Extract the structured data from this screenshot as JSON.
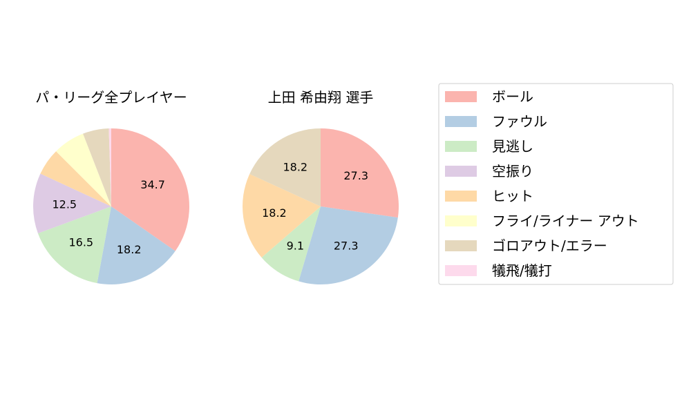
{
  "chart_data": {
    "type": "pie",
    "legend_position": "right",
    "legend": [
      {
        "label": "ボール",
        "color": "#fbb4ae"
      },
      {
        "label": "ファウル",
        "color": "#b3cde3"
      },
      {
        "label": "見逃し",
        "color": "#ccebc5"
      },
      {
        "label": "空振り",
        "color": "#decbe4"
      },
      {
        "label": "ヒット",
        "color": "#fed9a6"
      },
      {
        "label": "フライ/ライナー アウト",
        "color": "#ffffcc"
      },
      {
        "label": "ゴロアウト/エラー",
        "color": "#e5d8bd"
      },
      {
        "label": "犠飛/犠打",
        "color": "#fddaec"
      }
    ],
    "charts": [
      {
        "title": "パ・リーグ全プレイヤー",
        "values": [
          34.7,
          18.2,
          16.5,
          12.5,
          5.6,
          6.6,
          5.4,
          0.5
        ],
        "labels": [
          "34.7",
          "18.2",
          "16.5",
          "12.5",
          "",
          "",
          "",
          ""
        ]
      },
      {
        "title": "上田 希由翔  選手",
        "values": [
          27.3,
          27.3,
          9.1,
          0,
          18.2,
          0,
          18.2,
          0
        ],
        "labels": [
          "27.3",
          "27.3",
          "9.1",
          "",
          "18.2",
          "",
          "18.2",
          ""
        ]
      }
    ]
  }
}
